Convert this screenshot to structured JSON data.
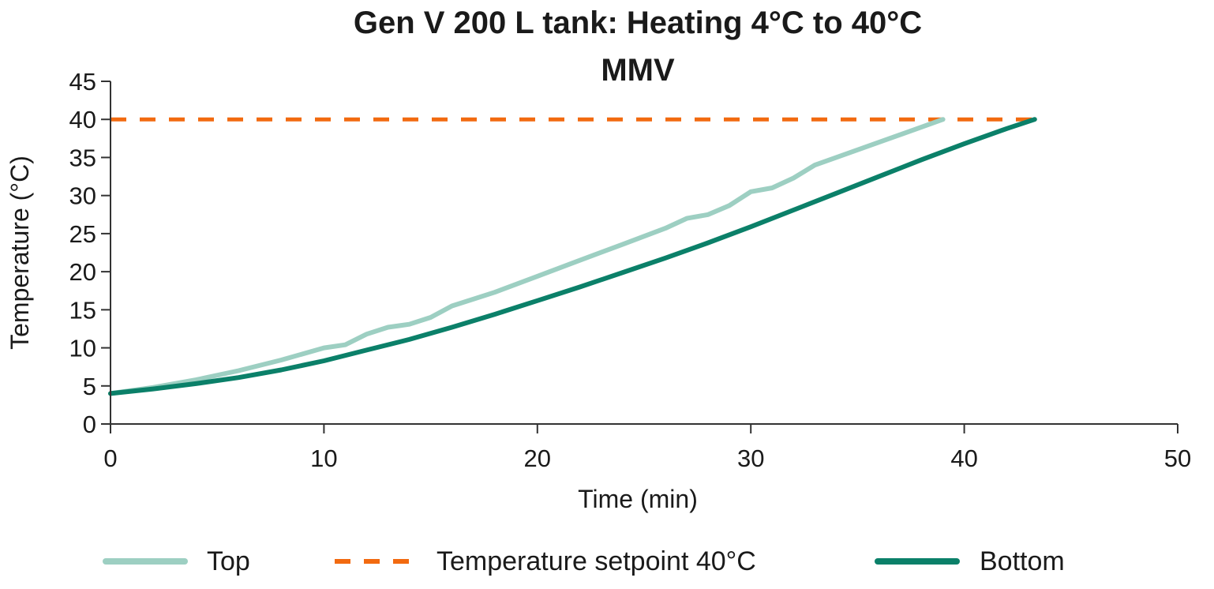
{
  "chart_data": {
    "type": "line",
    "title": "Gen V 200 L tank: Heating 4°C to 40°C",
    "subtitle": "MMV",
    "xlabel": "Time (min)",
    "ylabel": "Temperature (°C)",
    "xlim": [
      0,
      50
    ],
    "ylim": [
      0,
      45
    ],
    "xticks": [
      0,
      10,
      20,
      30,
      40,
      50
    ],
    "yticks": [
      0,
      5,
      10,
      15,
      20,
      25,
      30,
      35,
      40,
      45
    ],
    "grid": false,
    "legend_position": "bottom",
    "series": [
      {
        "name": "Top",
        "color": "#9dcfc2",
        "style": "solid",
        "x": [
          0,
          2,
          4,
          6,
          8,
          10,
          11,
          12,
          13,
          14,
          15,
          16,
          18,
          20,
          22,
          24,
          26,
          27,
          28,
          29,
          30,
          31,
          32,
          33,
          34,
          36,
          38,
          39
        ],
        "y": [
          4,
          4.8,
          5.8,
          7,
          8.4,
          10,
          10.4,
          11.8,
          12.7,
          13.1,
          14,
          15.5,
          17.3,
          19.4,
          21.5,
          23.6,
          25.7,
          27,
          27.5,
          28.7,
          30.5,
          31,
          32.3,
          34,
          35,
          37,
          39,
          40
        ]
      },
      {
        "name": "Temperature setpoint 40°C",
        "color": "#f26a10",
        "style": "dashed",
        "x": [
          0,
          43.5
        ],
        "y": [
          40,
          40
        ]
      },
      {
        "name": "Bottom",
        "color": "#0b8069",
        "style": "solid",
        "x": [
          0,
          2,
          4,
          6,
          8,
          10,
          12,
          14,
          16,
          18,
          20,
          22,
          24,
          26,
          28,
          30,
          32,
          34,
          36,
          38,
          40,
          42,
          43.3
        ],
        "y": [
          4,
          4.6,
          5.3,
          6.1,
          7.1,
          8.3,
          9.7,
          11.1,
          12.7,
          14.4,
          16.2,
          18,
          19.9,
          21.8,
          23.8,
          25.9,
          28.1,
          30.3,
          32.5,
          34.7,
          36.8,
          38.8,
          40
        ]
      }
    ]
  }
}
